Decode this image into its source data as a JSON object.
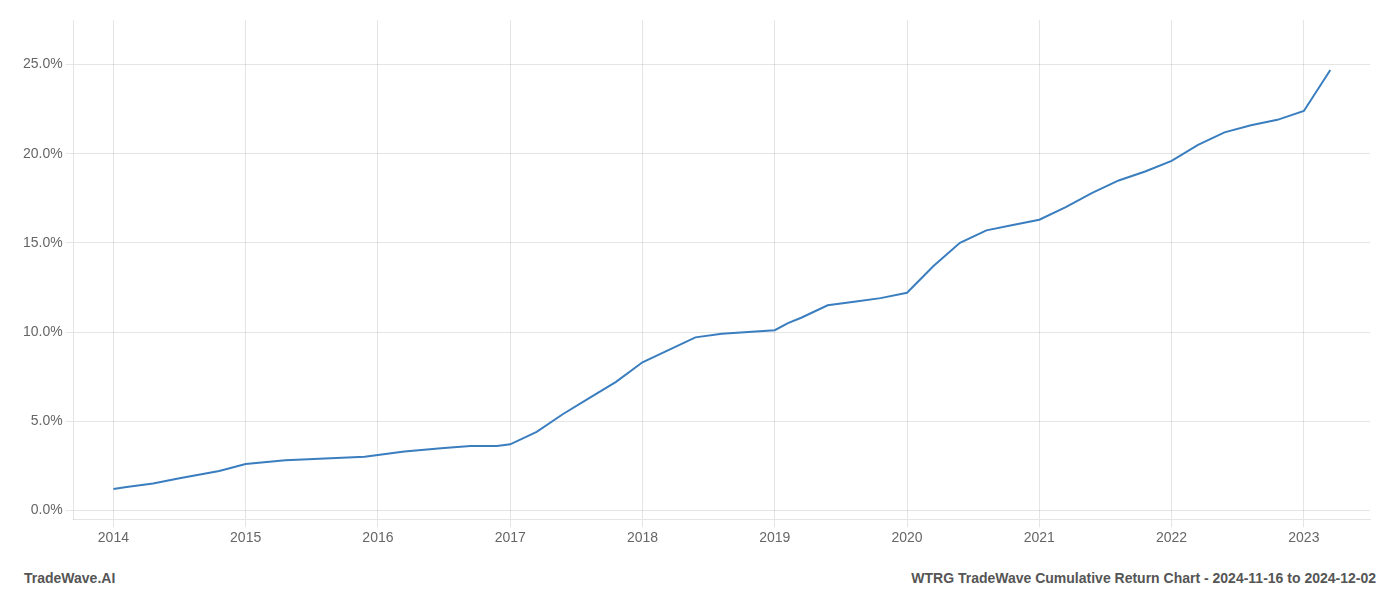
{
  "chart_data": {
    "type": "line",
    "x": [
      2014.0,
      2014.1,
      2014.2,
      2014.3,
      2014.5,
      2014.8,
      2015.0,
      2015.3,
      2015.6,
      2015.9,
      2016.0,
      2016.1,
      2016.2,
      2016.5,
      2016.7,
      2016.9,
      2017.0,
      2017.2,
      2017.4,
      2017.6,
      2017.8,
      2018.0,
      2018.2,
      2018.4,
      2018.6,
      2018.8,
      2019.0,
      2019.1,
      2019.2,
      2019.4,
      2019.6,
      2019.8,
      2020.0,
      2020.2,
      2020.4,
      2020.6,
      2020.8,
      2021.0,
      2021.2,
      2021.4,
      2021.6,
      2021.8,
      2022.0,
      2022.2,
      2022.4,
      2022.6,
      2022.8,
      2023.0,
      2023.2
    ],
    "series": [
      {
        "color": "#3a7ebf",
        "values": [
          0.012,
          0.013,
          0.014,
          0.015,
          0.018,
          0.022,
          0.026,
          0.028,
          0.029,
          0.03,
          0.031,
          0.032,
          0.033,
          0.035,
          0.036,
          0.036,
          0.037,
          0.044,
          0.054,
          0.063,
          0.072,
          0.083,
          0.09,
          0.097,
          0.099,
          0.1,
          0.101,
          0.105,
          0.108,
          0.115,
          0.117,
          0.119,
          0.122,
          0.137,
          0.15,
          0.157,
          0.16,
          0.163,
          0.17,
          0.178,
          0.185,
          0.19,
          0.196,
          0.205,
          0.212,
          0.216,
          0.219,
          0.224,
          0.247
        ]
      }
    ],
    "xlim": [
      2013.7,
      2023.5
    ],
    "xticks": [
      2014,
      2015,
      2016,
      2017,
      2018,
      2019,
      2020,
      2021,
      2022,
      2023
    ],
    "ylim": [
      -0.005,
      0.275
    ],
    "yticks": [
      {
        "value": 0.0,
        "label": "0.0%"
      },
      {
        "value": 0.05,
        "label": "5.0%"
      },
      {
        "value": 0.1,
        "label": "10.0%"
      },
      {
        "value": 0.15,
        "label": "15.0%"
      },
      {
        "value": 0.2,
        "label": "20.0%"
      },
      {
        "value": 0.25,
        "label": "25.0%"
      }
    ],
    "grid": true,
    "annotations": [
      "TradeWave.AI",
      "WTRG TradeWave Cumulative Return Chart - 2024-11-16 to 2024-12-02"
    ]
  }
}
